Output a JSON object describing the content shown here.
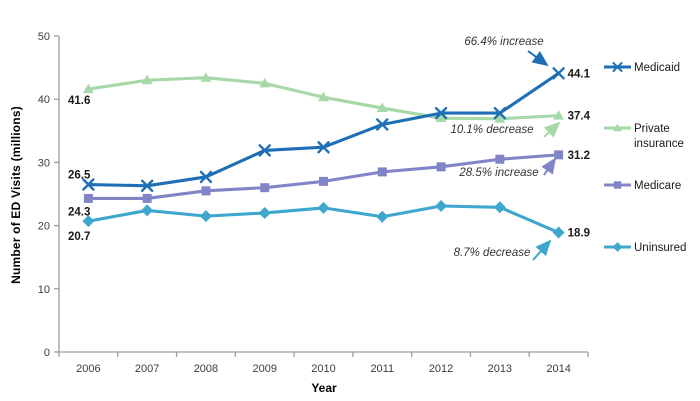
{
  "chart_data": {
    "type": "line",
    "title": "",
    "xlabel": "Year",
    "ylabel": "Number of ED Visits (millions)",
    "ylim": [
      0,
      50
    ],
    "yticks": [
      0,
      10,
      20,
      30,
      40,
      50
    ],
    "grid": false,
    "legend_position": "right",
    "categories": [
      "2006",
      "2007",
      "2008",
      "2009",
      "2010",
      "2011",
      "2012",
      "2013",
      "2014"
    ],
    "series": [
      {
        "name": "Medicaid",
        "color": "#1E6FB5",
        "marker": "x",
        "values": [
          26.5,
          26.3,
          27.7,
          31.9,
          32.4,
          36.0,
          37.8,
          37.8,
          44.1
        ],
        "start_label": "26.5",
        "end_label": "44.1",
        "annotation": "66.4% increase"
      },
      {
        "name": "Private insurance",
        "color": "#A6D8A8",
        "marker": "triangle",
        "values": [
          41.6,
          43.0,
          43.4,
          42.5,
          40.3,
          38.6,
          37.0,
          36.9,
          37.4
        ],
        "start_label": "41.6",
        "end_label": "37.4",
        "annotation": "10.1% decrease"
      },
      {
        "name": "Medicare",
        "color": "#8185C8",
        "marker": "square",
        "values": [
          24.3,
          24.3,
          25.5,
          26.0,
          27.0,
          28.5,
          29.3,
          30.5,
          31.2
        ],
        "start_label": "24.3",
        "end_label": "31.2",
        "annotation": "28.5% increase"
      },
      {
        "name": "Uninsured",
        "color": "#3FA6CE",
        "marker": "diamond",
        "values": [
          20.7,
          22.4,
          21.5,
          22.0,
          22.8,
          21.4,
          23.1,
          22.9,
          18.9
        ],
        "start_label": "20.7",
        "end_label": "18.9",
        "annotation": "8.7% decrease"
      }
    ]
  }
}
